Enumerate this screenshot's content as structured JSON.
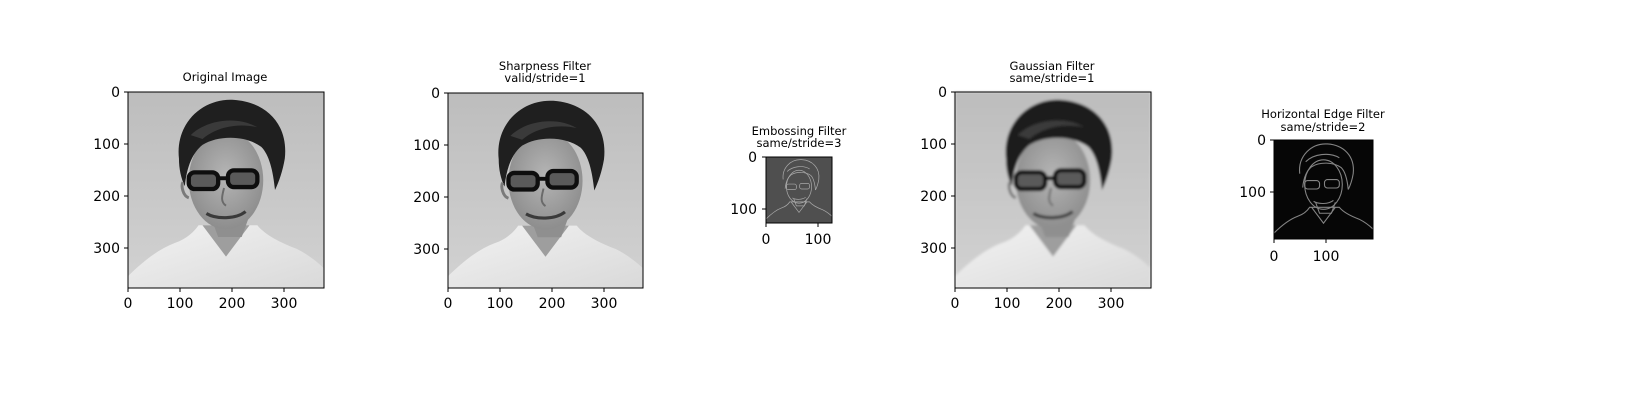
{
  "chart_data": [
    {
      "type": "image",
      "title": [
        "Original Image"
      ],
      "xticks": [
        0,
        100,
        200,
        300
      ],
      "yticks": [
        0,
        100,
        200,
        300
      ],
      "xlim": [
        0,
        378
      ],
      "ylim": [
        378,
        0
      ],
      "content": "grayscale-portrait"
    },
    {
      "type": "image",
      "title": [
        "Sharpness Filter",
        "valid/stride=1"
      ],
      "xticks": [
        0,
        100,
        200,
        300
      ],
      "yticks": [
        0,
        100,
        200,
        300
      ],
      "xlim": [
        0,
        376
      ],
      "ylim": [
        376,
        0
      ],
      "content": "grayscale-portrait"
    },
    {
      "type": "image",
      "title": [
        "Embossing Filter",
        "same/stride=3"
      ],
      "xticks": [
        0,
        100
      ],
      "yticks": [
        0,
        100
      ],
      "xlim": [
        0,
        126
      ],
      "ylim": [
        126,
        0
      ],
      "content": "dark-edge-map"
    },
    {
      "type": "image",
      "title": [
        "Gaussian Filter",
        "same/stride=1"
      ],
      "xticks": [
        0,
        100,
        200,
        300
      ],
      "yticks": [
        0,
        100,
        200,
        300
      ],
      "xlim": [
        0,
        378
      ],
      "ylim": [
        378,
        0
      ],
      "content": "grayscale-portrait"
    },
    {
      "type": "image",
      "title": [
        "Horizontal Edge Filter",
        "same/stride=2"
      ],
      "xticks": [
        0,
        100
      ],
      "yticks": [
        0,
        100
      ],
      "xlim": [
        0,
        189
      ],
      "ylim": [
        189,
        0
      ],
      "content": "dark-edge-map"
    }
  ]
}
